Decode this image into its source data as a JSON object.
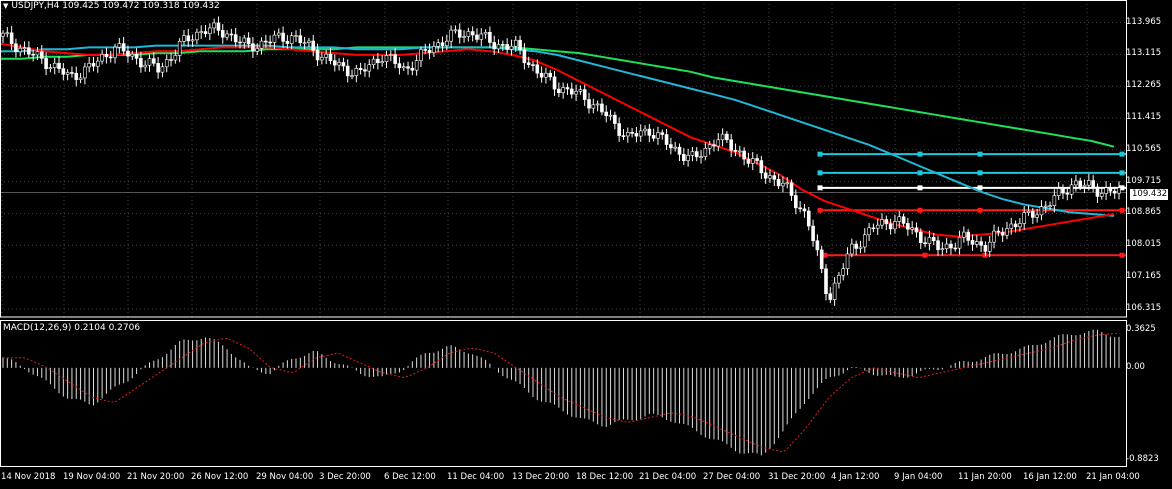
{
  "header": {
    "symbol": "USDJPY,H4",
    "ohlc": "109.425 109.472 109.318 109.432"
  },
  "macd": {
    "label": "MACD(12,26,9) 0.2104 0.2706",
    "axis_labels": [
      "0.3625",
      "0.00",
      "-0.8823"
    ]
  },
  "price_axis": [
    "113.965",
    "113.115",
    "112.265",
    "111.415",
    "110.565",
    "109.715",
    "108.865",
    "108.015",
    "107.165",
    "106.315"
  ],
  "current_price": "109.432",
  "time_axis": [
    "14 Nov 2018",
    "19 Nov 04:00",
    "21 Nov 20:00",
    "26 Nov 12:00",
    "29 Nov 04:00",
    "3 Dec 20:00",
    "6 Dec 12:00",
    "11 Dec 04:00",
    "13 Dec 20:00",
    "18 Dec 12:00",
    "21 Dec 04:00",
    "27 Dec 04:00",
    "31 Dec 20:00",
    "4 Jan 12:00",
    "9 Jan 04:00",
    "11 Jan 20:00",
    "16 Jan 12:00",
    "21 Jan 04:00"
  ],
  "colors": {
    "background": "#000000",
    "bull_candle": "#ffffff",
    "bear_candle": "#ffffff",
    "ma_fast": "#ff0000",
    "ma_mid": "#1fb8d6",
    "ma_slow": "#1fe05a",
    "resistance_cyan": "#1fc8d8",
    "level_white": "#ffffff",
    "support_red": "#ff1a1a",
    "grid": "#ffffff"
  },
  "chart_data": {
    "type": "line",
    "title": "",
    "price_range": [
      106.1,
      114.3
    ],
    "levels": [
      {
        "price": 110.45,
        "color": "cyan"
      },
      {
        "price": 109.95,
        "color": "cyan"
      },
      {
        "price": 109.55,
        "color": "white"
      },
      {
        "price": 108.95,
        "color": "red"
      },
      {
        "price": 107.75,
        "color": "red"
      }
    ],
    "close_path": [
      113.6,
      113.2,
      112.9,
      112.5,
      112.8,
      113.3,
      113.0,
      112.7,
      113.4,
      113.8,
      113.7,
      113.3,
      113.5,
      113.6,
      113.2,
      112.8,
      112.6,
      113.1,
      112.7,
      113.2,
      113.6,
      113.7,
      113.4,
      113.3,
      112.6,
      112.2,
      112.0,
      111.5,
      110.9,
      111.1,
      110.6,
      110.3,
      110.9,
      110.5,
      110.0,
      109.6,
      108.8,
      106.6,
      107.9,
      108.5,
      108.7,
      108.3,
      107.9,
      108.2,
      108.0,
      108.5,
      108.8,
      109.2,
      109.7,
      109.5,
      109.43
    ],
    "ma_fast": [
      113.4,
      113.3,
      113.2,
      113.15,
      113.1,
      113.1,
      113.15,
      113.2,
      113.2,
      113.25,
      113.3,
      113.3,
      113.3,
      113.25,
      113.2,
      113.15,
      113.1,
      113.1,
      113.1,
      113.15,
      113.2,
      113.25,
      113.2,
      113.1,
      112.95,
      112.7,
      112.4,
      112.1,
      111.8,
      111.5,
      111.2,
      110.9,
      110.7,
      110.5,
      110.2,
      109.9,
      109.5,
      109.2,
      109.0,
      108.8,
      108.6,
      108.45,
      108.3,
      108.25,
      108.3,
      108.35,
      108.45,
      108.55,
      108.65,
      108.75,
      108.85
    ],
    "ma_mid": [
      113.2,
      113.2,
      113.25,
      113.25,
      113.3,
      113.3,
      113.3,
      113.35,
      113.35,
      113.35,
      113.35,
      113.35,
      113.35,
      113.3,
      113.3,
      113.3,
      113.25,
      113.25,
      113.25,
      113.3,
      113.3,
      113.3,
      113.3,
      113.25,
      113.2,
      113.1,
      112.95,
      112.8,
      112.65,
      112.5,
      112.35,
      112.2,
      112.05,
      111.9,
      111.7,
      111.5,
      111.3,
      111.1,
      110.9,
      110.7,
      110.45,
      110.2,
      109.95,
      109.7,
      109.45,
      109.25,
      109.1,
      109.0,
      108.9,
      108.85,
      108.8
    ],
    "ma_slow": [
      113.0,
      113.0,
      113.05,
      113.05,
      113.1,
      113.1,
      113.1,
      113.15,
      113.15,
      113.2,
      113.2,
      113.2,
      113.25,
      113.25,
      113.25,
      113.25,
      113.3,
      113.3,
      113.3,
      113.3,
      113.3,
      113.3,
      113.3,
      113.3,
      113.25,
      113.2,
      113.15,
      113.05,
      112.95,
      112.85,
      112.75,
      112.65,
      112.5,
      112.4,
      112.3,
      112.2,
      112.1,
      112.0,
      111.9,
      111.8,
      111.7,
      111.6,
      111.5,
      111.4,
      111.3,
      111.2,
      111.1,
      111.0,
      110.9,
      110.8,
      110.65
    ],
    "macd_path": [
      0.1,
      0.0,
      -0.15,
      -0.3,
      -0.35,
      -0.2,
      -0.05,
      0.1,
      0.25,
      0.3,
      0.2,
      0.0,
      -0.05,
      0.1,
      0.15,
      0.05,
      -0.05,
      -0.1,
      0.0,
      0.15,
      0.2,
      0.15,
      0.0,
      -0.15,
      -0.3,
      -0.4,
      -0.5,
      -0.55,
      -0.5,
      -0.45,
      -0.5,
      -0.6,
      -0.7,
      -0.8,
      -0.85,
      -0.6,
      -0.3,
      -0.1,
      0.0,
      -0.05,
      -0.1,
      -0.05,
      0.0,
      0.05,
      0.1,
      0.15,
      0.2,
      0.28,
      0.33,
      0.35,
      0.3
    ]
  }
}
